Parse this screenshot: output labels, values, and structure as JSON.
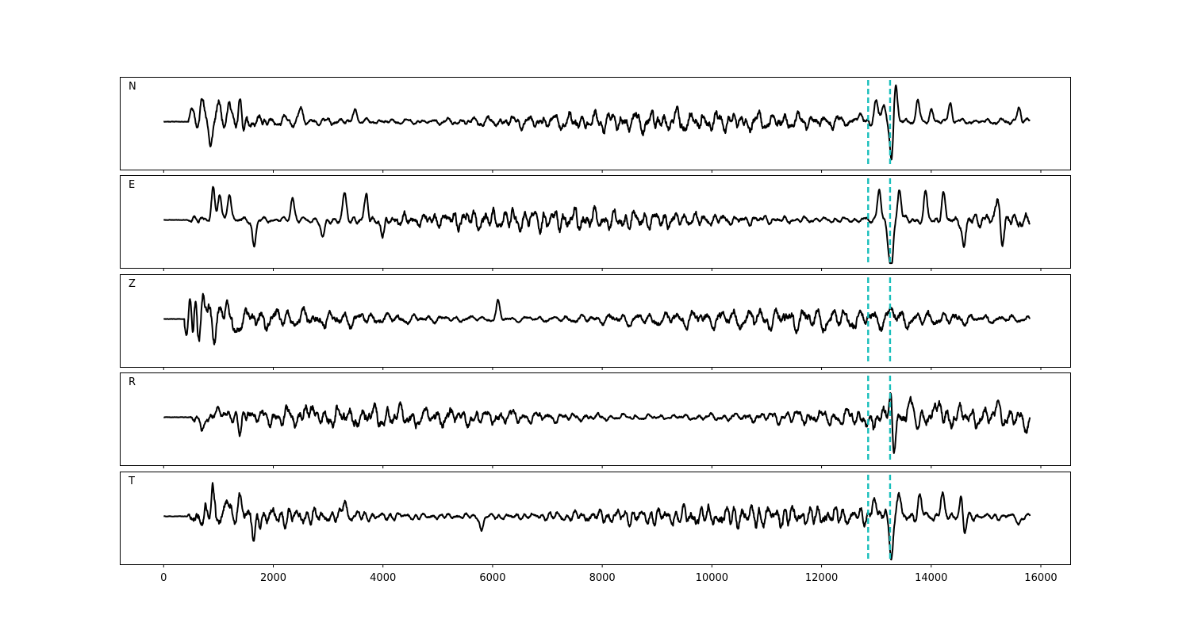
{
  "chart_data": {
    "type": "line",
    "title": "",
    "xlabel": "",
    "ylabel": "",
    "xlim": [
      -800,
      16550
    ],
    "x_ticks": [
      0,
      2000,
      4000,
      6000,
      8000,
      10000,
      12000,
      14000,
      16000
    ],
    "x_tick_labels": [
      "0",
      "2000",
      "4000",
      "6000",
      "8000",
      "10000",
      "12000",
      "14000",
      "16000"
    ],
    "grid": false,
    "legend": "none",
    "samples": {
      "start": 0,
      "end": 15800
    },
    "colors": {
      "trace": "#000000",
      "marker": "#17bebb",
      "frame": "#000000"
    },
    "marker_lines": [
      12850,
      13250
    ],
    "panels": [
      {
        "label": "N",
        "onset": 450,
        "peaks": [
          {
            "x": 520,
            "y": 0.35
          },
          {
            "x": 700,
            "y": 0.45
          },
          {
            "x": 850,
            "y": -0.4
          },
          {
            "x": 1000,
            "y": 0.4
          },
          {
            "x": 1200,
            "y": 0.45
          },
          {
            "x": 1400,
            "y": 0.65
          },
          {
            "x": 1450,
            "y": -0.45
          },
          {
            "x": 2500,
            "y": 0.35
          },
          {
            "x": 3500,
            "y": 0.3
          },
          {
            "x": 12700,
            "y": 0.2
          },
          {
            "x": 12990,
            "y": 0.55
          },
          {
            "x": 13140,
            "y": 0.4
          },
          {
            "x": 13280,
            "y": -1.0
          },
          {
            "x": 13350,
            "y": 0.95
          },
          {
            "x": 13750,
            "y": 0.5
          },
          {
            "x": 14000,
            "y": 0.3
          },
          {
            "x": 14350,
            "y": 0.45
          },
          {
            "x": 15600,
            "y": 0.35
          }
        ]
      },
      {
        "label": "E",
        "onset": 420,
        "peaks": [
          {
            "x": 900,
            "y": 0.75
          },
          {
            "x": 1020,
            "y": 0.6
          },
          {
            "x": 1200,
            "y": 0.7
          },
          {
            "x": 1650,
            "y": -0.65
          },
          {
            "x": 2350,
            "y": 0.55
          },
          {
            "x": 2900,
            "y": -0.5
          },
          {
            "x": 3300,
            "y": 0.6
          },
          {
            "x": 3700,
            "y": 0.55
          },
          {
            "x": 4000,
            "y": -0.45
          },
          {
            "x": 13050,
            "y": 0.75
          },
          {
            "x": 13220,
            "y": -0.6
          },
          {
            "x": 13280,
            "y": -1.0
          },
          {
            "x": 13420,
            "y": 0.75
          },
          {
            "x": 13900,
            "y": 0.6
          },
          {
            "x": 14220,
            "y": 0.6
          },
          {
            "x": 14600,
            "y": -0.7
          },
          {
            "x": 15220,
            "y": 0.65
          },
          {
            "x": 15300,
            "y": -0.55
          }
        ]
      },
      {
        "label": "Z",
        "onset": 380,
        "peaks": [
          {
            "x": 430,
            "y": -0.55
          },
          {
            "x": 480,
            "y": 0.85
          },
          {
            "x": 530,
            "y": -0.9
          },
          {
            "x": 580,
            "y": 0.6
          },
          {
            "x": 640,
            "y": -0.5
          },
          {
            "x": 720,
            "y": 0.5
          },
          {
            "x": 830,
            "y": 0.45
          },
          {
            "x": 930,
            "y": -0.4
          },
          {
            "x": 1150,
            "y": 0.45
          },
          {
            "x": 1300,
            "y": -0.4
          },
          {
            "x": 6100,
            "y": 0.4
          },
          {
            "x": 13260,
            "y": 0.3
          }
        ]
      },
      {
        "label": "R",
        "onset": 450,
        "peaks": [
          {
            "x": 700,
            "y": -0.45
          },
          {
            "x": 1000,
            "y": 0.4
          },
          {
            "x": 1400,
            "y": -0.55
          },
          {
            "x": 1450,
            "y": 0.45
          },
          {
            "x": 2600,
            "y": 0.4
          },
          {
            "x": 12950,
            "y": -0.35
          },
          {
            "x": 13270,
            "y": 0.95
          },
          {
            "x": 13320,
            "y": -1.0
          },
          {
            "x": 13650,
            "y": 0.35
          },
          {
            "x": 14150,
            "y": 0.35
          },
          {
            "x": 15250,
            "y": 0.3
          },
          {
            "x": 15700,
            "y": -0.35
          }
        ]
      },
      {
        "label": "T",
        "onset": 430,
        "peaks": [
          {
            "x": 900,
            "y": 0.55
          },
          {
            "x": 1150,
            "y": 0.45
          },
          {
            "x": 1400,
            "y": 0.6
          },
          {
            "x": 1650,
            "y": -0.55
          },
          {
            "x": 3300,
            "y": 0.45
          },
          {
            "x": 5800,
            "y": -0.35
          },
          {
            "x": 12950,
            "y": 0.45
          },
          {
            "x": 13280,
            "y": -1.0
          },
          {
            "x": 13400,
            "y": 0.55
          },
          {
            "x": 13800,
            "y": 0.45
          },
          {
            "x": 14200,
            "y": 0.55
          },
          {
            "x": 14550,
            "y": 0.55
          },
          {
            "x": 14600,
            "y": -0.5
          },
          {
            "x": 15600,
            "y": -0.2
          }
        ]
      }
    ]
  }
}
